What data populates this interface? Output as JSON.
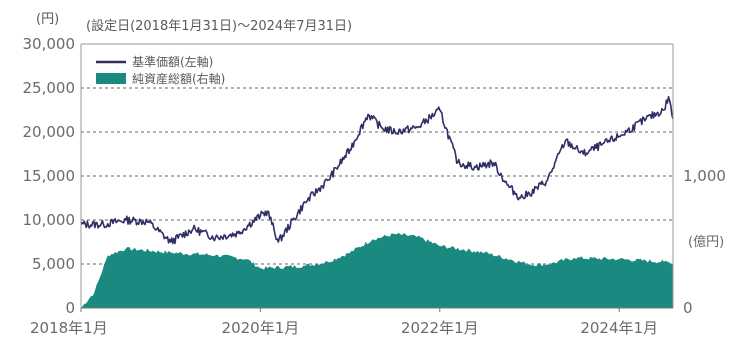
{
  "chart_data": {
    "type": "line",
    "subtitle": "(設定日(2018年1月31日)～2024年7月31日)",
    "left_unit": "(円)",
    "right_unit": "(億円)",
    "x_ticks": [
      "2018年1月",
      "2020年1月",
      "2022年1月",
      "2024年1月"
    ],
    "x_tick_dates": [
      2018.0,
      2020.0,
      2022.0,
      2024.0
    ],
    "xlim": [
      2018.0,
      2024.6
    ],
    "ylim_left": [
      0,
      30000
    ],
    "ylim_right": [
      0,
      2000
    ],
    "y_ticks_left": [
      {
        "value": 0,
        "label": "0"
      },
      {
        "value": 5000,
        "label": "5,000"
      },
      {
        "value": 10000,
        "label": "10,000"
      },
      {
        "value": 15000,
        "label": "15,000"
      },
      {
        "value": 20000,
        "label": "20,000"
      },
      {
        "value": 25000,
        "label": "25,000"
      },
      {
        "value": 30000,
        "label": "30,000"
      }
    ],
    "y_ticks_right": [
      {
        "value": 0,
        "label": "0"
      },
      {
        "value": 1000,
        "label": "1,000"
      }
    ],
    "grid": "horizontal-dashed",
    "legend_position": "top-left",
    "colors": {
      "nav_line": "#2f2f66",
      "aum_area": "#1a8a80",
      "grid": "#666666",
      "axis": "#999999"
    },
    "series": [
      {
        "name": "基準価額(左軸)",
        "axis": "left",
        "type": "line",
        "x": [
          2018.0,
          2018.25,
          2018.5,
          2018.75,
          2019.0,
          2019.25,
          2019.5,
          2019.75,
          2020.0,
          2020.08,
          2020.2,
          2020.5,
          2020.75,
          2021.0,
          2021.2,
          2021.35,
          2021.5,
          2021.75,
          2022.0,
          2022.2,
          2022.4,
          2022.6,
          2022.75,
          2022.9,
          2023.0,
          2023.2,
          2023.4,
          2023.6,
          2023.8,
          2024.0,
          2024.3,
          2024.5,
          2024.55,
          2024.6
        ],
        "values": [
          9500,
          9500,
          10000,
          9800,
          7500,
          9000,
          8000,
          8500,
          10500,
          11000,
          7500,
          12000,
          14500,
          18000,
          22000,
          20500,
          20000,
          20500,
          22500,
          16500,
          16000,
          16500,
          14000,
          12500,
          13000,
          14500,
          19000,
          17500,
          18500,
          19500,
          21500,
          22500,
          24000,
          21500
        ]
      },
      {
        "name": "純資産総額(右軸)",
        "axis": "right",
        "type": "area",
        "x": [
          2018.0,
          2018.15,
          2018.3,
          2018.5,
          2019.0,
          2019.5,
          2019.85,
          2020.0,
          2020.5,
          2020.75,
          2021.0,
          2021.25,
          2021.5,
          2021.75,
          2022.0,
          2022.5,
          2023.0,
          2023.2,
          2023.5,
          2024.0,
          2024.5,
          2024.6
        ],
        "values": [
          0,
          120,
          400,
          450,
          420,
          400,
          370,
          300,
          320,
          350,
          420,
          520,
          560,
          540,
          470,
          420,
          330,
          330,
          380,
          370,
          350,
          340
        ]
      }
    ]
  }
}
